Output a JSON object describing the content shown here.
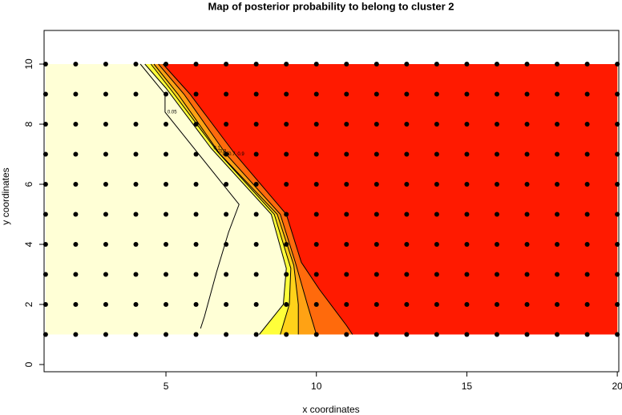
{
  "chart_data": {
    "type": "contour",
    "title": "Map of posterior probability to belong to cluster  2",
    "x_label": "x coordinates",
    "y_label": "y coordinates",
    "xlim": [
      0.95,
      20.05
    ],
    "ylim": [
      -0.24,
      11.12
    ],
    "xticks": [
      5,
      10,
      15,
      20
    ],
    "yticks": [
      0,
      2,
      4,
      6,
      8,
      10
    ],
    "field": {
      "x_range": [
        1,
        20
      ],
      "y_range": [
        1,
        10
      ],
      "color": "#FFFFD6"
    },
    "contours": [
      {
        "level": 0.05,
        "x": [
          4.15,
          4.97,
          4.97,
          7.43,
          7.08,
          6.68,
          6.28,
          6.15
        ],
        "y": [
          10,
          9,
          8.4,
          5.33,
          4.4,
          3.07,
          1.6,
          1.2
        ]
      },
      {
        "level": 0.1,
        "color": "#FFFF3A",
        "x": [
          4.3,
          5.0,
          6.5,
          8.5,
          9.0,
          8.9,
          8.1
        ],
        "y": [
          10,
          9.2,
          7.2,
          5.0,
          3.2,
          2.0,
          1
        ]
      },
      {
        "level": 0.3,
        "color": "#FFD21A",
        "x": [
          4.5,
          5.2,
          6.7,
          8.6,
          9.15,
          9.1,
          8.8
        ],
        "y": [
          10,
          9.1,
          7.1,
          5.0,
          3.2,
          2.0,
          1
        ]
      },
      {
        "level": 0.5,
        "color": "#FFA214",
        "x": [
          4.6,
          5.4,
          6.8,
          8.7,
          9.25,
          9.4,
          9.4
        ],
        "y": [
          10,
          9.0,
          7.0,
          5.0,
          3.3,
          2.0,
          1
        ]
      },
      {
        "level": 0.7,
        "color": "#FF6A0C",
        "x": [
          4.75,
          5.6,
          7.0,
          8.8,
          9.3,
          9.7,
          10.0
        ],
        "y": [
          10,
          9.0,
          7.0,
          5.0,
          3.4,
          2.0,
          1
        ]
      },
      {
        "level": 0.9,
        "color": "#FF1A00",
        "x": [
          4.9,
          5.8,
          7.3,
          9.0,
          9.5,
          10.1,
          11.0,
          11.2
        ],
        "y": [
          10,
          9.0,
          7.0,
          5.0,
          3.4,
          2.5,
          1.3,
          1
        ]
      }
    ],
    "points": {
      "color": "#000000",
      "x": [
        1,
        2,
        3,
        4,
        5,
        6,
        7,
        8,
        9,
        10,
        11,
        12,
        13,
        14,
        15,
        16,
        17,
        18,
        19,
        20
      ],
      "y": [
        1,
        2,
        3,
        4,
        5,
        6,
        7,
        8,
        9,
        10
      ]
    }
  }
}
